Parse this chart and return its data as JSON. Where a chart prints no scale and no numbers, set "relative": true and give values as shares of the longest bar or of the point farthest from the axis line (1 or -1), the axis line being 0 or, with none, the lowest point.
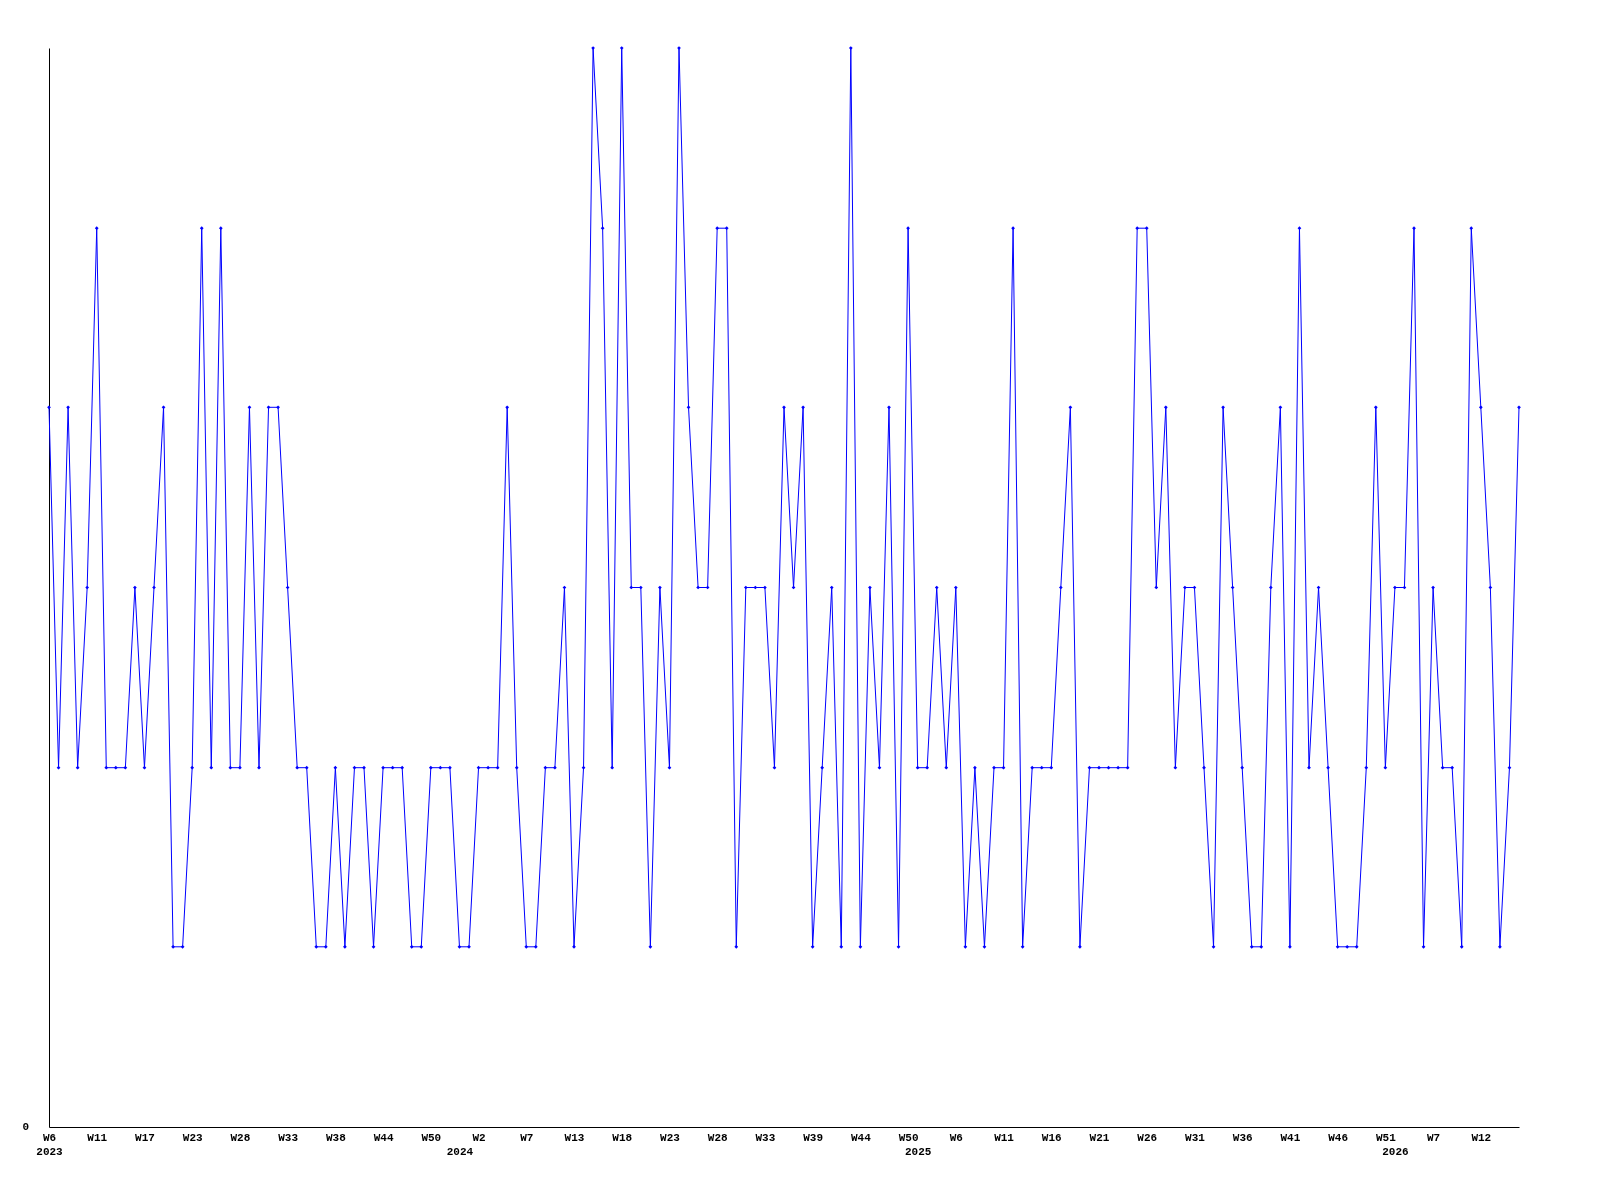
{
  "chart_data": {
    "type": "line",
    "relative": true,
    "annotations": [
      "0"
    ],
    "grid": false,
    "marker": "diamond",
    "line_style": "solid",
    "categories": [
      "W6\n2023",
      null,
      null,
      null,
      null,
      "W11",
      null,
      null,
      null,
      null,
      "W17",
      null,
      null,
      null,
      null,
      "W23",
      null,
      null,
      null,
      null,
      "W28",
      null,
      null,
      null,
      null,
      "W33",
      null,
      null,
      null,
      null,
      "W38",
      null,
      null,
      null,
      null,
      "W44",
      null,
      null,
      null,
      null,
      "W50",
      null,
      null,
      "\n2024",
      null,
      "W2",
      null,
      null,
      null,
      null,
      "W7",
      null,
      null,
      null,
      null,
      "W13",
      null,
      null,
      null,
      null,
      "W18",
      null,
      null,
      null,
      null,
      "W23",
      null,
      null,
      null,
      null,
      "W28",
      null,
      null,
      null,
      null,
      "W33",
      null,
      null,
      null,
      null,
      "W39",
      null,
      null,
      null,
      null,
      "W44",
      null,
      null,
      null,
      null,
      "W50",
      "\n2025",
      null,
      null,
      null,
      "W6",
      null,
      null,
      null,
      null,
      "W11",
      null,
      null,
      null,
      null,
      "W16",
      null,
      null,
      null,
      null,
      "W21",
      null,
      null,
      null,
      null,
      "W26",
      null,
      null,
      null,
      null,
      "W31",
      null,
      null,
      null,
      null,
      "W36",
      null,
      null,
      null,
      null,
      "W41",
      null,
      null,
      null,
      null,
      "W46",
      null,
      null,
      null,
      null,
      "W51",
      "\n2026",
      null,
      null,
      null,
      "W7",
      null,
      null,
      null,
      null,
      "W12",
      null,
      null,
      null,
      null
    ],
    "series": [
      {
        "color": "#0000ff",
        "values": [
          0.667,
          0.333,
          0.667,
          0.333,
          0.5,
          0.833,
          0.333,
          0.333,
          0.333,
          0.5,
          0.333,
          0.5,
          0.667,
          0.167,
          0.167,
          0.333,
          0.833,
          0.333,
          0.833,
          0.333,
          0.333,
          0.667,
          0.333,
          0.667,
          0.667,
          0.5,
          0.333,
          0.333,
          0.167,
          0.167,
          0.333,
          0.167,
          0.333,
          0.333,
          0.167,
          0.333,
          0.333,
          0.333,
          0.167,
          0.167,
          0.333,
          0.333,
          0.333,
          0.167,
          0.167,
          0.333,
          0.333,
          0.333,
          0.667,
          0.333,
          0.167,
          0.167,
          0.333,
          0.333,
          0.5,
          0.167,
          0.333,
          1,
          0.833,
          0.333,
          1,
          0.5,
          0.5,
          0.167,
          0.5,
          0.333,
          1,
          0.667,
          0.5,
          0.5,
          0.833,
          0.833,
          0.167,
          0.5,
          0.5,
          0.5,
          0.333,
          0.667,
          0.5,
          0.667,
          0.167,
          0.333,
          0.5,
          0.167,
          1,
          0.167,
          0.5,
          0.333,
          0.667,
          0.167,
          0.833,
          0.333,
          0.333,
          0.5,
          0.333,
          0.5,
          0.167,
          0.333,
          0.167,
          0.333,
          0.333,
          0.833,
          0.167,
          0.333,
          0.333,
          0.333,
          0.5,
          0.667,
          0.167,
          0.333,
          0.333,
          0.333,
          0.333,
          0.333,
          0.833,
          0.833,
          0.5,
          0.667,
          0.333,
          0.5,
          0.5,
          0.333,
          0.167,
          0.667,
          0.5,
          0.333,
          0.167,
          0.167,
          0.5,
          0.667,
          0.167,
          0.833,
          0.333,
          0.5,
          0.333,
          0.167,
          0.167,
          0.167,
          0.333,
          0.667,
          0.333,
          0.5,
          0.5,
          0.833,
          0.167,
          0.5,
          0.333,
          0.333,
          0.167,
          0.833,
          0.667,
          0.5,
          0.167,
          0.333,
          0.667
        ]
      }
    ]
  }
}
